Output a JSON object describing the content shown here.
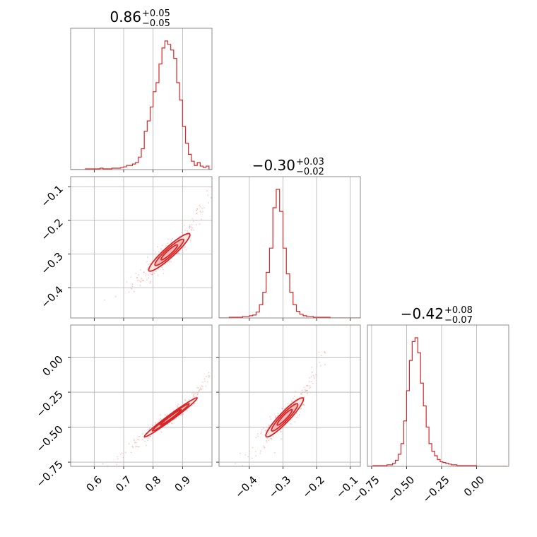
{
  "colors": {
    "accent": "#d62728",
    "grid": "#b0b0b0",
    "axis": "#808080",
    "fill_inner": "#f2b8b9",
    "fill_outer": "#fbe4e4",
    "points": "#f4a6a6"
  },
  "titles": [
    {
      "main": "0.86",
      "sup": "+0.05",
      "sub": "−0.05"
    },
    {
      "main": "−0.30",
      "sup": "+0.03",
      "sub": "−0.02"
    },
    {
      "main": "−0.42",
      "sup": "+0.08",
      "sub": "−0.07"
    }
  ],
  "chart_data": {
    "type": "corner",
    "grid": true,
    "parameters": [
      {
        "range": [
          0.52,
          1.0
        ],
        "ticks": [
          0.6,
          0.7,
          0.8,
          0.9
        ],
        "tick_labels": [
          "0.6",
          "0.7",
          "0.8",
          "0.9"
        ]
      },
      {
        "range": [
          -0.49,
          -0.07
        ],
        "ticks": [
          -0.4,
          -0.3,
          -0.2,
          -0.1
        ],
        "tick_labels": [
          "−0.4",
          "−0.3",
          "−0.2",
          "−0.1"
        ]
      },
      {
        "range": [
          -0.78,
          0.23
        ],
        "ticks": [
          -0.75,
          -0.5,
          -0.25,
          0.0
        ],
        "tick_labels": [
          "−0.75",
          "−0.50",
          "−0.25",
          "0.00"
        ]
      }
    ],
    "histograms": [
      {
        "parameter": 0,
        "bins": [
          0.52,
          0.53,
          0.54,
          0.55,
          0.56,
          0.57,
          0.58,
          0.59,
          0.6,
          0.61,
          0.62,
          0.63,
          0.64,
          0.65,
          0.66,
          0.67,
          0.68,
          0.69,
          0.7,
          0.71,
          0.72,
          0.73,
          0.74,
          0.75,
          0.76,
          0.77,
          0.78,
          0.79,
          0.8,
          0.81,
          0.82,
          0.83,
          0.84,
          0.85,
          0.86,
          0.87,
          0.88,
          0.89,
          0.9,
          0.91,
          0.92,
          0.93,
          0.94,
          0.95,
          0.96,
          0.97,
          0.98,
          0.99,
          1.0
        ],
        "counts": [
          0,
          0,
          0,
          0,
          0,
          1,
          1,
          1,
          1,
          1,
          2,
          1,
          1,
          1,
          2,
          2,
          2,
          3,
          4,
          6,
          6,
          8,
          10,
          18,
          30,
          55,
          70,
          90,
          112,
          125,
          152,
          175,
          185,
          180,
          172,
          160,
          125,
          100,
          62,
          38,
          22,
          12,
          6,
          10,
          5,
          3,
          5,
          0
        ]
      },
      {
        "parameter": 1,
        "bins": [
          -0.49,
          -0.48,
          -0.47,
          -0.46,
          -0.45,
          -0.44,
          -0.43,
          -0.42,
          -0.41,
          -0.4,
          -0.39,
          -0.38,
          -0.37,
          -0.36,
          -0.35,
          -0.34,
          -0.33,
          -0.32,
          -0.31,
          -0.3,
          -0.29,
          -0.28,
          -0.27,
          -0.26,
          -0.25,
          -0.24,
          -0.23,
          -0.22,
          -0.21,
          -0.2,
          -0.19,
          -0.18,
          -0.17,
          -0.16,
          -0.15,
          -0.14,
          -0.13,
          -0.12,
          -0.11,
          -0.1,
          -0.09,
          -0.08,
          -0.07
        ],
        "counts": [
          0,
          0,
          0,
          1,
          1,
          1,
          1,
          2,
          2,
          3,
          4,
          8,
          18,
          35,
          62,
          95,
          150,
          175,
          145,
          95,
          60,
          35,
          18,
          9,
          5,
          3,
          2,
          2,
          1,
          1,
          1,
          1,
          1,
          0,
          0,
          0,
          0,
          0,
          0,
          0,
          0,
          0
        ]
      },
      {
        "parameter": 2,
        "bins": [
          -0.78,
          -0.76,
          -0.74,
          -0.72,
          -0.7,
          -0.68,
          -0.66,
          -0.64,
          -0.62,
          -0.6,
          -0.58,
          -0.56,
          -0.54,
          -0.52,
          -0.5,
          -0.48,
          -0.46,
          -0.44,
          -0.42,
          -0.4,
          -0.38,
          -0.36,
          -0.34,
          -0.32,
          -0.3,
          -0.28,
          -0.26,
          -0.24,
          -0.22,
          -0.2,
          -0.18,
          -0.16,
          -0.14,
          -0.12,
          -0.1,
          -0.08,
          -0.06,
          -0.04,
          -0.02,
          0.0,
          0.02,
          0.04,
          0.06,
          0.08,
          0.1,
          0.12,
          0.14,
          0.16,
          0.18,
          0.2,
          0.22
        ],
        "counts": [
          0,
          0,
          1,
          1,
          1,
          1,
          1,
          2,
          2,
          4,
          8,
          16,
          30,
          60,
          100,
          140,
          165,
          170,
          150,
          110,
          80,
          52,
          30,
          20,
          14,
          9,
          6,
          5,
          4,
          3,
          2,
          2,
          1,
          1,
          1,
          1,
          1,
          1,
          1,
          0,
          0,
          0,
          0,
          0,
          0,
          0,
          0,
          0,
          0,
          0
        ]
      }
    ],
    "pairs": [
      {
        "x_param": 0,
        "y_param": 1,
        "mean": [
          0.855,
          -0.295
        ],
        "sd": [
          0.035,
          0.028
        ],
        "corr": 0.93
      },
      {
        "x_param": 0,
        "y_param": 2,
        "mean": [
          0.86,
          -0.43
        ],
        "sd": [
          0.045,
          0.07
        ],
        "corr": 0.985
      },
      {
        "x_param": 1,
        "y_param": 2,
        "mean": [
          -0.295,
          -0.43
        ],
        "sd": [
          0.028,
          0.07
        ],
        "corr": 0.93
      }
    ]
  }
}
